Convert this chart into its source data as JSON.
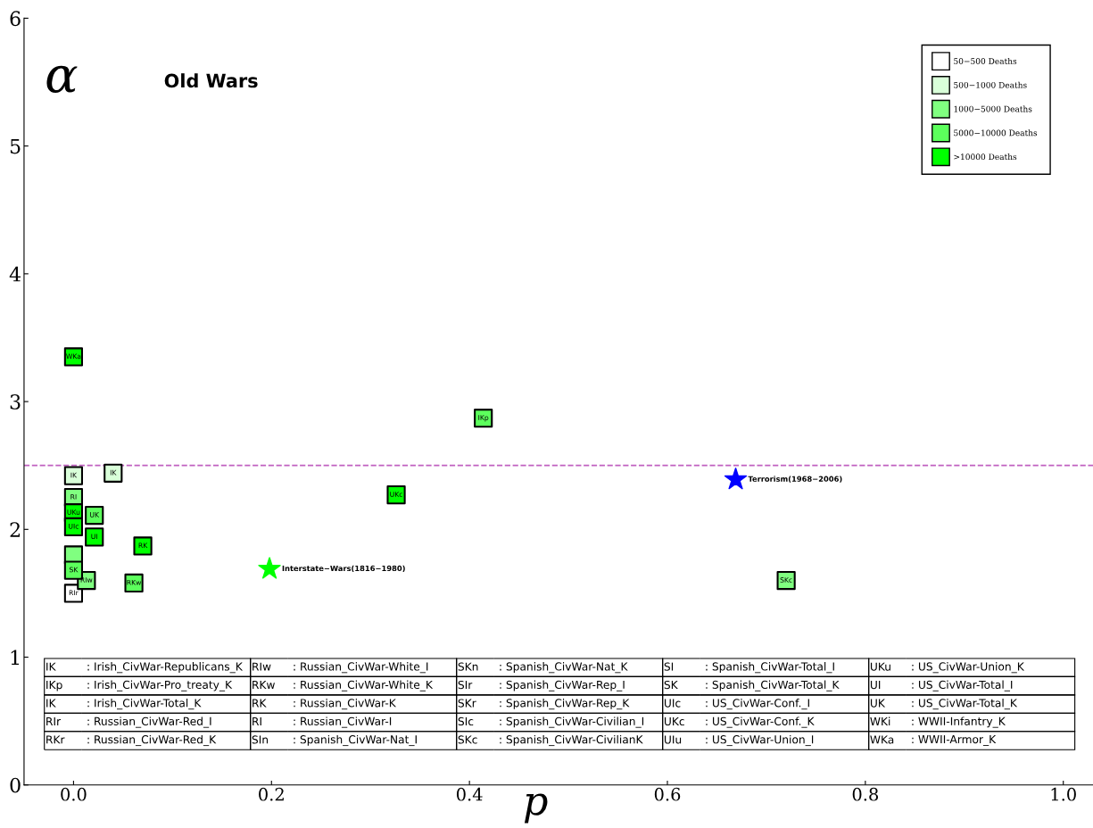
{
  "chart_data": {
    "type": "scatter",
    "title": "Old Wars",
    "xlabel": "p",
    "ylabel": "α",
    "xlim": [
      -0.05,
      1.03
    ],
    "ylim": [
      0,
      6
    ],
    "xticks": [
      {
        "value": 0,
        "label": "0.0"
      },
      0.2,
      0.4,
      0.6,
      0.8,
      {
        "value": 1,
        "label": "1.0"
      }
    ],
    "yticks": [
      0,
      1,
      2,
      3,
      4,
      5,
      6
    ],
    "grid": false,
    "legend": "top right",
    "marker": "square",
    "series": [
      {
        "name": "50−500 Deaths",
        "color": "#ffffff",
        "x": [
          0
        ],
        "values": [
          1.5
        ]
      },
      {
        "name": "500−1000 Deaths",
        "color": "#d9ffd9",
        "x": [
          0.04,
          0
        ],
        "values": [
          2.44,
          2.42
        ]
      },
      {
        "name": "1000−5000 Deaths",
        "color": "#80ff80",
        "x": [
          0.72,
          0.013,
          0,
          0
        ],
        "values": [
          1.6,
          1.6,
          2.25,
          1.8
        ]
      },
      {
        "name": "5000−10000 Deaths",
        "color": "#5cff5c",
        "x": [
          0.414,
          0.061,
          0.021,
          0
        ],
        "values": [
          2.87,
          1.58,
          2.11,
          1.68
        ]
      },
      {
        "name": ">10000 Deaths",
        "color": "#00ff00",
        "x": [
          0,
          0.326,
          0.07,
          0.021,
          0,
          0
        ],
        "values": [
          3.35,
          2.27,
          1.87,
          1.94,
          2.13,
          2.02
        ]
      },
      {
        "color": "#00ff00",
        "marker": "star",
        "x": [
          0.198
        ],
        "values": [
          1.69
        ]
      },
      {
        "color": "#0000ff",
        "marker": "star",
        "x": [
          0.669
        ],
        "values": [
          2.39
        ]
      }
    ],
    "ref_lines": [
      {
        "axis": "y",
        "value": 2.5,
        "color": "#c060c0",
        "line_style": "dashed"
      }
    ],
    "annotations": [
      {
        "text": "WKa",
        "x": 0,
        "y": 3.35
      },
      {
        "text": "IKp",
        "x": 0.414,
        "y": 2.87
      },
      {
        "text": "IK",
        "x": 0.04,
        "y": 2.44
      },
      {
        "text": "UKc",
        "x": 0.326,
        "y": 2.27
      },
      {
        "text": "RK",
        "x": 0.07,
        "y": 1.87
      },
      {
        "text": "RKw",
        "x": 0.061,
        "y": 1.58
      },
      {
        "text": "UK",
        "x": 0.021,
        "y": 2.11
      },
      {
        "text": "UI",
        "x": 0.021,
        "y": 1.94
      },
      {
        "text": "RIw",
        "x": 0.013,
        "y": 1.6
      },
      {
        "text": "SKc",
        "x": 0.72,
        "y": 1.6
      },
      {
        "text": "IK",
        "x": 0,
        "y": 2.42
      },
      {
        "text": "RI",
        "x": 0,
        "y": 2.25
      },
      {
        "text": "UKu",
        "x": 0,
        "y": 2.13
      },
      {
        "text": "UIc",
        "x": 0,
        "y": 2.02
      },
      {
        "text": "SK",
        "x": 0,
        "y": 1.68
      },
      {
        "text": "RIr",
        "x": 0,
        "y": 1.5
      },
      {
        "text": "Interstate−Wars(1816−1980)",
        "x": 0.198,
        "y": 1.69
      },
      {
        "text": "Terrorism(1968−2006)",
        "x": 0.669,
        "y": 2.39
      },
      "IK : Irish_CivWar-Republicans_K",
      "IKp : Irish_CivWar-Pro_treaty_K",
      "IK : Irish_CivWar-Total_K",
      "RIr : Russian_CivWar-Red_I",
      "RKr : Russian_CivWar-Red_K",
      "RIw : Russian_CivWar-White_I",
      "RKw : Russian_CivWar-White_K",
      "RK : Russian_CivWar-K",
      "RI : Russian_CivWar-I",
      "SIn : Spanish_CivWar-Nat_I",
      "SKn : Spanish_CivWar-Nat_K",
      "SIr : Spanish_CivWar-Rep_I",
      "SKr : Spanish_CivWar-Rep_K",
      "SIc : Spanish_CivWar-Civilian_I",
      "SKc : Spanish_CivWar-CivilianK",
      "SI : Spanish_CivWar-Total_I",
      "SK : Spanish_CivWar-Total_K",
      "UIc : US_CivWar-Conf._I",
      "UKc : US_CivWar-Conf._K",
      "UIu : US_CivWar-Union_I",
      "UKu : US_CivWar-Union_K",
      "UI : US_CivWar-Total_I",
      "UK : US_CivWar-Total_K",
      "WKi : WWII-Infantry_K",
      "WKa : WWII-Armor_K"
    ]
  }
}
